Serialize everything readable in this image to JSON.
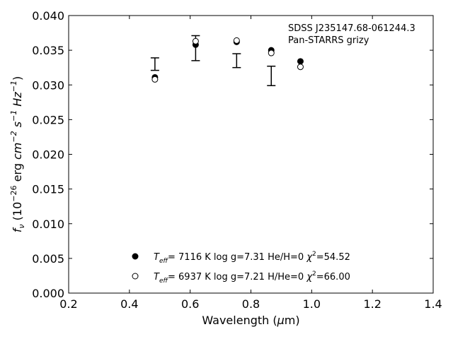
{
  "chart_data": {
    "type": "scatter",
    "title": "",
    "annotation_lines": [
      "SDSS J235147.68-061244.3",
      "Pan-STARRS grizy"
    ],
    "xlabel": {
      "pre": "Wavelength (",
      "sym": "μ",
      "post": "m)"
    },
    "ylabel": {
      "text": "f_ν (10^-26 erg cm^-2 s^-1 Hz^-1)"
    },
    "xlim": [
      0.2,
      1.4
    ],
    "ylim": [
      0.0,
      0.04
    ],
    "xticks": [
      0.2,
      0.4,
      0.6,
      0.8,
      1.0,
      1.2,
      1.4
    ],
    "xtick_labels": [
      "0.2",
      "0.4",
      "0.6",
      "0.8",
      "1.0",
      "1.2",
      "1.4"
    ],
    "yticks": [
      0.0,
      0.005,
      0.01,
      0.015,
      0.02,
      0.025,
      0.03,
      0.035,
      0.04
    ],
    "ytick_labels": [
      "0.000",
      "0.005",
      "0.010",
      "0.015",
      "0.020",
      "0.025",
      "0.030",
      "0.035",
      "0.040"
    ],
    "grid": false,
    "legend_placement": "lower-center",
    "observed": {
      "x": [
        0.484,
        0.618,
        0.753,
        0.867,
        0.963
      ],
      "y": [
        0.033,
        0.0353,
        0.0335,
        0.0313,
        null
      ],
      "yerr": [
        0.0009,
        0.0018,
        0.001,
        0.0014,
        null
      ]
    },
    "series": [
      {
        "marker": "filled-circle",
        "legend": {
          "teff": "7116 K",
          "logg": "log g=7.31",
          "comp": "He/H=0",
          "chi2": "=54.52"
        },
        "x": [
          0.484,
          0.618,
          0.753,
          0.867,
          0.963
        ],
        "y": [
          0.0311,
          0.0358,
          0.0362,
          0.035,
          0.0334
        ]
      },
      {
        "marker": "open-circle",
        "legend": {
          "teff": "6937 K",
          "logg": "log g=7.21",
          "comp": "H/He=0",
          "chi2": "=66.00"
        },
        "x": [
          0.484,
          0.618,
          0.753,
          0.867,
          0.963
        ],
        "y": [
          0.0308,
          0.0363,
          0.0364,
          0.0346,
          0.0326
        ]
      }
    ],
    "colors": {
      "axis": "#000000",
      "marker": "#000000",
      "background": "#ffffff"
    }
  }
}
